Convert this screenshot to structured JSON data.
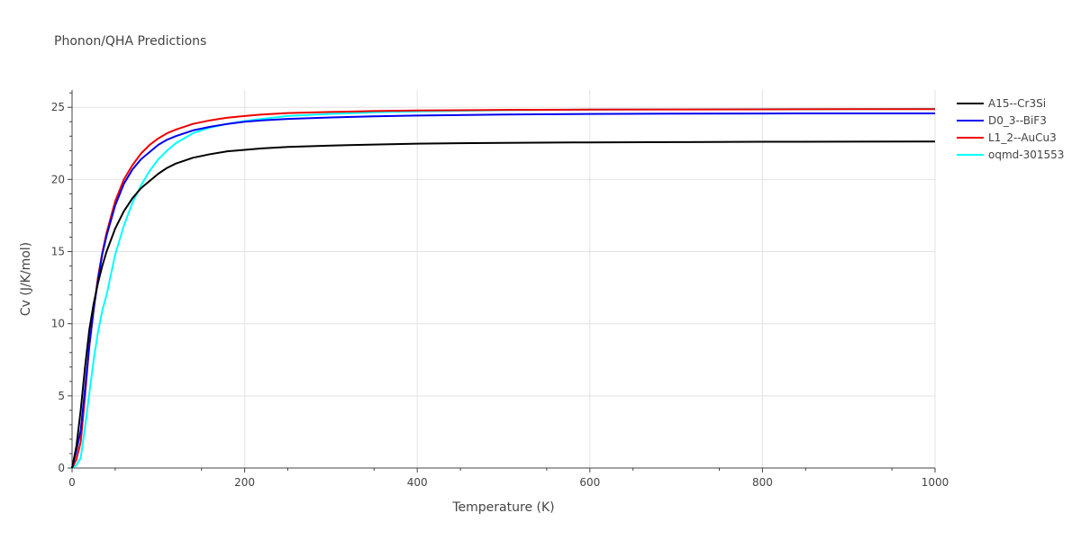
{
  "chart_data": {
    "type": "line",
    "title": "Phonon/QHA Predictions",
    "xlabel": "Temperature (K)",
    "ylabel": "Cv (J/K/mol)",
    "xlim": [
      0,
      1000
    ],
    "ylim": [
      0,
      26.2
    ],
    "x_ticks": [
      0,
      200,
      400,
      600,
      800,
      1000
    ],
    "y_ticks": [
      0,
      5,
      10,
      15,
      20,
      25
    ],
    "grid": true,
    "legend_position": "right",
    "series": [
      {
        "name": "A15--Cr3Si",
        "color": "#000000",
        "x": [
          0,
          5,
          10,
          15,
          20,
          25,
          30,
          35,
          40,
          50,
          60,
          70,
          80,
          90,
          100,
          110,
          120,
          140,
          160,
          180,
          200,
          220,
          250,
          300,
          350,
          400,
          500,
          600,
          700,
          800,
          900,
          1000
        ],
        "y": [
          0,
          1.5,
          4.0,
          7.0,
          9.6,
          11.4,
          12.8,
          14.0,
          15.0,
          16.6,
          17.8,
          18.7,
          19.4,
          19.9,
          20.4,
          20.8,
          21.1,
          21.5,
          21.75,
          21.95,
          22.05,
          22.15,
          22.25,
          22.35,
          22.42,
          22.48,
          22.54,
          22.57,
          22.59,
          22.61,
          22.62,
          22.63
        ]
      },
      {
        "name": "D0_3--BiF3",
        "color": "#0000ee",
        "x": [
          0,
          5,
          10,
          15,
          20,
          25,
          30,
          35,
          40,
          50,
          60,
          70,
          80,
          90,
          100,
          110,
          120,
          140,
          160,
          180,
          200,
          220,
          250,
          300,
          350,
          400,
          500,
          600,
          700,
          800,
          900,
          1000
        ],
        "y": [
          0,
          1.2,
          2.6,
          5.5,
          8.5,
          11.0,
          13.0,
          14.8,
          16.1,
          18.2,
          19.7,
          20.7,
          21.4,
          21.9,
          22.4,
          22.75,
          23.0,
          23.4,
          23.65,
          23.85,
          24.0,
          24.1,
          24.2,
          24.3,
          24.38,
          24.43,
          24.5,
          24.54,
          24.56,
          24.57,
          24.58,
          24.58
        ]
      },
      {
        "name": "L1_2--AuCu3",
        "color": "#ee0000",
        "x": [
          0,
          5,
          10,
          15,
          20,
          25,
          30,
          35,
          40,
          50,
          60,
          70,
          80,
          90,
          100,
          110,
          120,
          140,
          160,
          180,
          200,
          220,
          250,
          300,
          350,
          400,
          500,
          600,
          700,
          800,
          900,
          1000
        ],
        "y": [
          0,
          0.6,
          1.8,
          5.0,
          8.5,
          11.0,
          13.2,
          14.9,
          16.3,
          18.5,
          20.0,
          21.0,
          21.8,
          22.4,
          22.85,
          23.2,
          23.45,
          23.85,
          24.1,
          24.28,
          24.4,
          24.5,
          24.6,
          24.68,
          24.74,
          24.78,
          24.82,
          24.84,
          24.85,
          24.86,
          24.87,
          24.87
        ]
      },
      {
        "name": "oqmd-301553",
        "color": "#00ffff",
        "x": [
          0,
          5,
          10,
          15,
          20,
          25,
          30,
          35,
          40,
          50,
          60,
          70,
          80,
          90,
          100,
          110,
          120,
          140,
          160,
          180,
          200,
          220,
          250,
          300,
          350,
          400,
          500,
          600,
          700,
          800,
          900,
          1000
        ],
        "y": [
          0,
          0.2,
          0.7,
          2.8,
          5.2,
          7.5,
          9.4,
          10.9,
          12.0,
          14.8,
          16.8,
          18.4,
          19.6,
          20.6,
          21.4,
          22.0,
          22.5,
          23.2,
          23.6,
          23.85,
          24.05,
          24.2,
          24.4,
          24.55,
          24.65,
          24.72,
          24.8,
          24.84,
          24.86,
          24.87,
          24.88,
          24.89
        ]
      }
    ]
  }
}
